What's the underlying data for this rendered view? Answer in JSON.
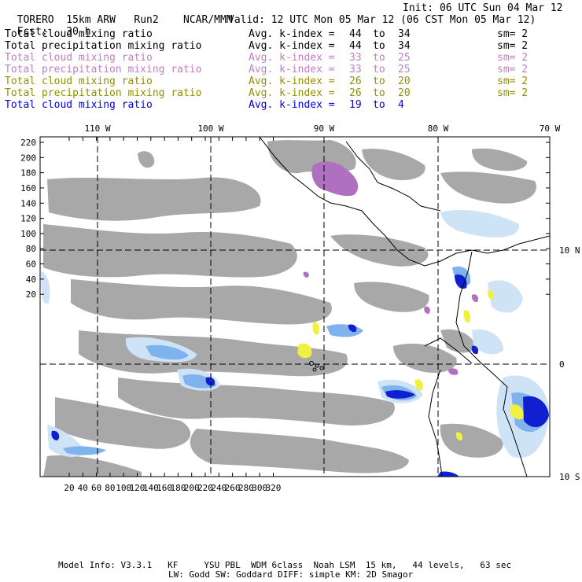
{
  "header": {
    "model": "TORERO",
    "resolution": "15km ARW",
    "run": "Run2",
    "org": "NCAR/MMM",
    "init": "Init: 06 UTC Sun 04 Mar 12",
    "fcst_label": "Fcst:",
    "fcst_value": "30 h",
    "valid": "Valid: 12 UTC Mon 05 Mar 12 (06 CST Mon 05 Mar 12)"
  },
  "legend": [
    {
      "field": "Total cloud mixing ratio",
      "avg": "Avg. k-index =",
      "from": "44",
      "to_word": "to",
      "to": "34",
      "sm": "sm= 2",
      "color": "#000000"
    },
    {
      "field": "Total precipitation mixing ratio",
      "avg": "Avg. k-index =",
      "from": "44",
      "to_word": "to",
      "to": "34",
      "sm": "sm= 2",
      "color": "#000000"
    },
    {
      "field": "Total cloud mixing ratio",
      "avg": "Avg. k-index =",
      "from": "33",
      "to_word": "to",
      "to": "25",
      "sm": "sm= 2",
      "color": "#c080c0"
    },
    {
      "field": "Total precipitation mixing ratio",
      "avg": "Avg. k-index =",
      "from": "33",
      "to_word": "to",
      "to": "25",
      "sm": "sm= 2",
      "color": "#c080c0"
    },
    {
      "field": "Total cloud mixing ratio",
      "avg": "Avg. k-index =",
      "from": "26",
      "to_word": "to",
      "to": "20",
      "sm": "sm= 2",
      "color": "#909000"
    },
    {
      "field": "Total precipitation mixing ratio",
      "avg": "Avg. k-index =",
      "from": "26",
      "to_word": "to",
      "to": "20",
      "sm": "sm= 2",
      "color": "#909000"
    },
    {
      "field": "Total cloud mixing ratio",
      "avg": "Avg. k-index =",
      "from": "19",
      "to_word": "to",
      "to": "4",
      "sm": "",
      "color": "#0000e0"
    }
  ],
  "map": {
    "lon_labels": [
      "110 W",
      "100 W",
      "90 W",
      "80 W",
      "70 W"
    ],
    "lat_labels": [
      "10 N",
      "0",
      "10 S"
    ],
    "y_ticks": [
      "220",
      "200",
      "180",
      "160",
      "140",
      "120",
      "100",
      "80",
      "60",
      "40",
      "20"
    ],
    "x_ticks": [
      "20",
      "40",
      "60",
      "80",
      "100",
      "120",
      "140",
      "160",
      "180",
      "200",
      "220",
      "240",
      "260",
      "280",
      "300",
      "320"
    ],
    "colors": {
      "cloud_gray": "#a8a8a8",
      "light_blue": "#cfe3f7",
      "mid_blue": "#7fb3ee",
      "dark_blue": "#1020d0",
      "purple": "#b070c0",
      "yellow": "#f0f040"
    }
  },
  "footer": {
    "line1": "Model Info: V3.3.1   KF     YSU PBL  WDM 6class  Noah LSM  15 km,   44 levels,   63 sec",
    "line2": "LW: Godd SW: Goddard DIFF: simple KM: 2D Smagor"
  }
}
